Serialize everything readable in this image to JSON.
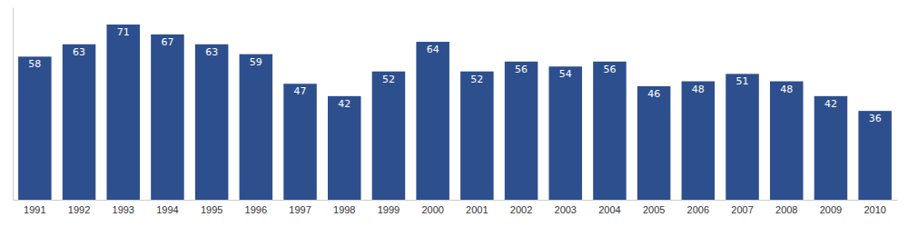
{
  "chart_data": {
    "type": "bar",
    "categories": [
      "1991",
      "1992",
      "1993",
      "1994",
      "1995",
      "1996",
      "1997",
      "1998",
      "1999",
      "2000",
      "2001",
      "2002",
      "2003",
      "2004",
      "2005",
      "2006",
      "2007",
      "2008",
      "2009",
      "2010"
    ],
    "values": [
      58,
      63,
      71,
      67,
      63,
      59,
      47,
      42,
      52,
      64,
      52,
      56,
      54,
      56,
      46,
      48,
      51,
      48,
      42,
      36
    ],
    "color": "#2d4f8e",
    "ylim": [
      0,
      78
    ],
    "data_labels": true,
    "tick_labels": "x"
  }
}
